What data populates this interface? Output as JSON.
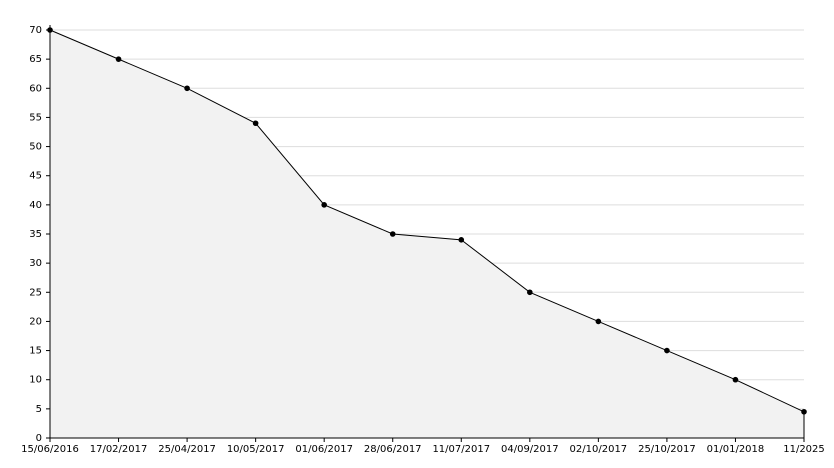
{
  "chart_data": {
    "type": "area",
    "categories": [
      "15/06/2016",
      "17/02/2017",
      "25/04/2017",
      "10/05/2017",
      "01/06/2017",
      "28/06/2017",
      "11/07/2017",
      "04/09/2017",
      "02/10/2017",
      "25/10/2017",
      "01/01/2018",
      "11/2025"
    ],
    "values": [
      70,
      65,
      60,
      54,
      40,
      35,
      34,
      25,
      20,
      15,
      10,
      4.5
    ],
    "color": "#000000",
    "fill": "#f2f2f2",
    "ylim": [
      0,
      70
    ],
    "yticks": [
      0,
      5,
      10,
      15,
      20,
      25,
      30,
      35,
      40,
      45,
      50,
      55,
      60,
      65,
      70
    ],
    "grid": true
  }
}
